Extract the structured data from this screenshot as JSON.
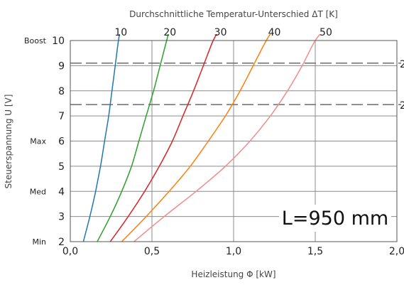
{
  "chart_data": {
    "type": "line",
    "title": "Durchschnittliche Temperatur-Unterschied ΔT [K]",
    "xlabel": "Heizleistung Φ [kW]",
    "ylabel": "Steuerspannung U [V]",
    "xlim": [
      0.0,
      2.0
    ],
    "ylim": [
      2,
      10
    ],
    "x_ticks": [
      "0,0",
      "0,5",
      "1,0",
      "1,5",
      "2,0"
    ],
    "y_ticks": [
      "2",
      "3",
      "4",
      "5",
      "6",
      "7",
      "8",
      "9",
      "10"
    ],
    "y_side_labels": [
      {
        "y": 10,
        "label": "Boost"
      },
      {
        "y": 6,
        "label": "Max"
      },
      {
        "y": 4,
        "label": "Med"
      },
      {
        "y": 2,
        "label": "Min"
      }
    ],
    "reference_lines": [
      {
        "y": 9.1,
        "label": "2"
      },
      {
        "y": 7.45,
        "label": "2"
      }
    ],
    "annotation": "L=950 mm",
    "grid": true,
    "series": [
      {
        "name": "10",
        "color": "#1f77b4",
        "points": [
          [
            0.08,
            2
          ],
          [
            0.12,
            3
          ],
          [
            0.155,
            4
          ],
          [
            0.185,
            5
          ],
          [
            0.21,
            6
          ],
          [
            0.235,
            7
          ],
          [
            0.255,
            8
          ],
          [
            0.275,
            9
          ],
          [
            0.295,
            10
          ],
          [
            0.31,
            10.5
          ]
        ]
      },
      {
        "name": "20",
        "color": "#2ca02c",
        "points": [
          [
            0.165,
            2
          ],
          [
            0.245,
            3
          ],
          [
            0.315,
            4
          ],
          [
            0.375,
            5
          ],
          [
            0.42,
            6
          ],
          [
            0.465,
            7
          ],
          [
            0.51,
            8
          ],
          [
            0.55,
            9
          ],
          [
            0.59,
            10
          ],
          [
            0.61,
            10.5
          ]
        ]
      },
      {
        "name": "30",
        "color": "#d62728",
        "points": [
          [
            0.245,
            2
          ],
          [
            0.355,
            3
          ],
          [
            0.455,
            4
          ],
          [
            0.545,
            5
          ],
          [
            0.625,
            6
          ],
          [
            0.69,
            7
          ],
          [
            0.755,
            8
          ],
          [
            0.815,
            9
          ],
          [
            0.875,
            10
          ],
          [
            0.92,
            10.5
          ]
        ]
      },
      {
        "name": "40",
        "color": "#ff7f0e",
        "points": [
          [
            0.315,
            2
          ],
          [
            0.465,
            3
          ],
          [
            0.605,
            4
          ],
          [
            0.735,
            5
          ],
          [
            0.845,
            6
          ],
          [
            0.95,
            7
          ],
          [
            1.04,
            8
          ],
          [
            1.12,
            9
          ],
          [
            1.2,
            10
          ],
          [
            1.25,
            10.5
          ]
        ]
      },
      {
        "name": "50",
        "color": "#f08c8c",
        "points": [
          [
            0.39,
            2
          ],
          [
            0.575,
            3
          ],
          [
            0.77,
            4
          ],
          [
            0.95,
            5
          ],
          [
            1.1,
            6
          ],
          [
            1.225,
            7
          ],
          [
            1.33,
            8
          ],
          [
            1.42,
            9
          ],
          [
            1.5,
            10
          ],
          [
            1.565,
            10.5
          ]
        ]
      }
    ]
  }
}
